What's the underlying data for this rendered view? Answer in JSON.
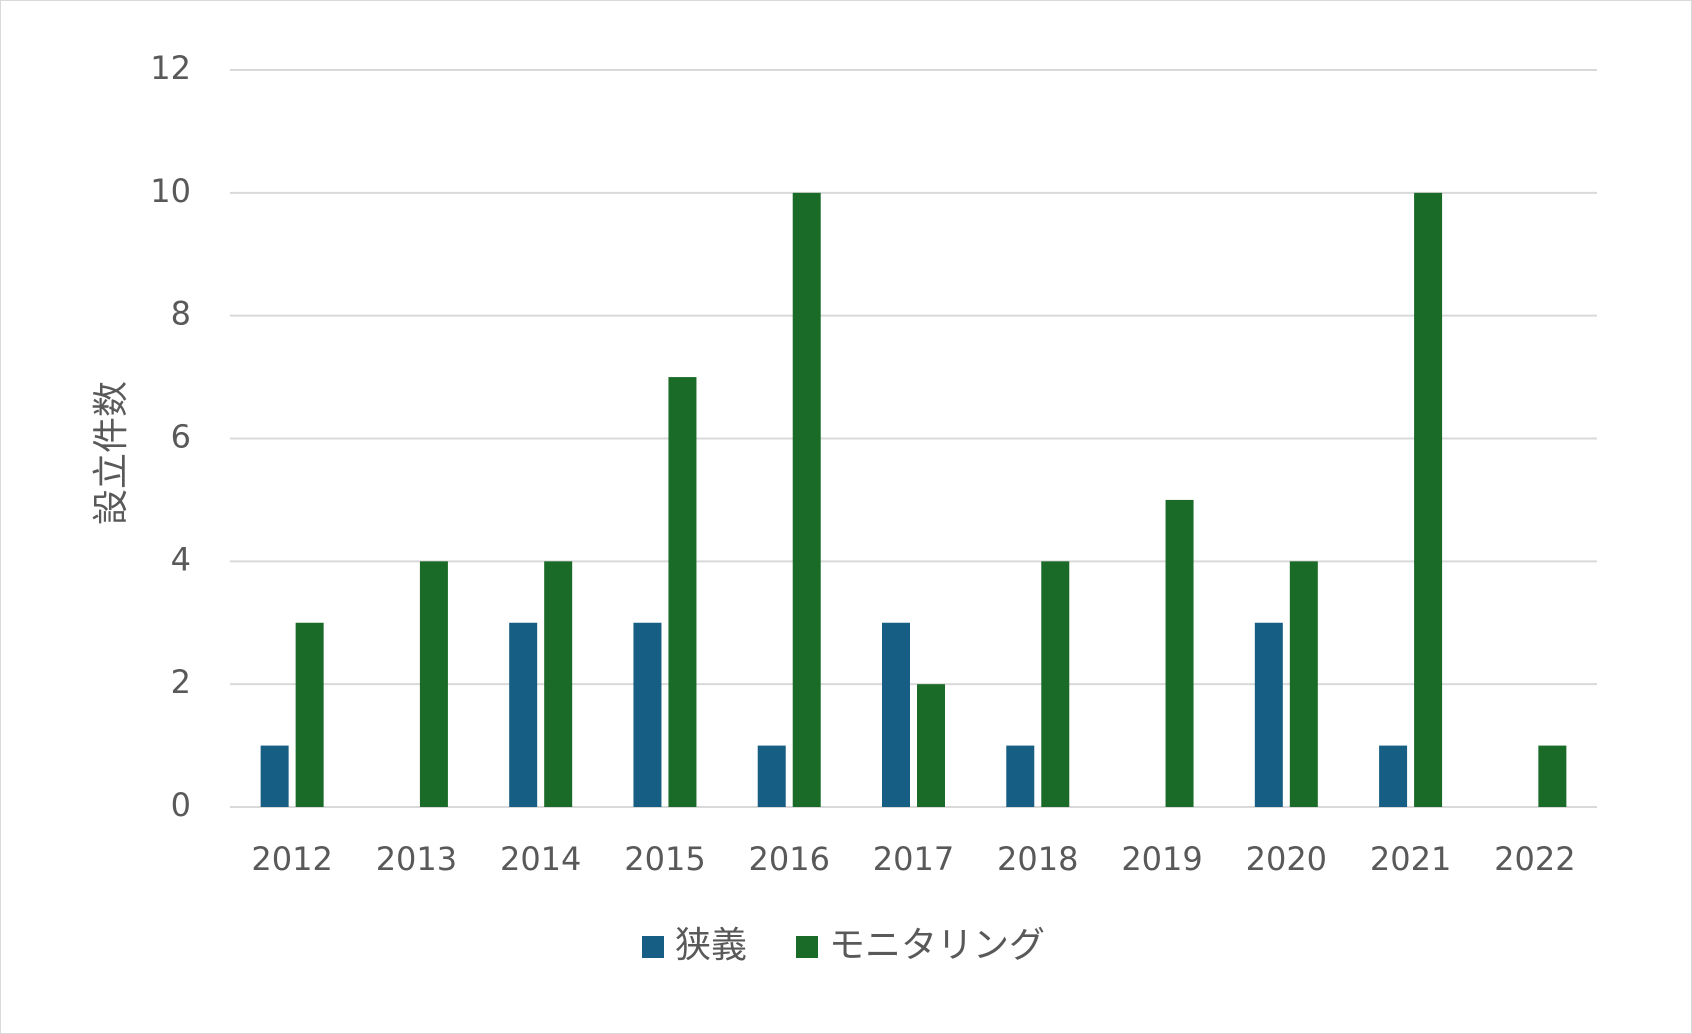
{
  "chart_data": {
    "type": "bar",
    "title": "",
    "xlabel": "",
    "ylabel": "設立件数",
    "ylim": [
      0,
      12
    ],
    "yticks": [
      0,
      2,
      4,
      6,
      8,
      10,
      12
    ],
    "grid": true,
    "legend": "bottom",
    "categories": [
      "2012",
      "2013",
      "2014",
      "2015",
      "2016",
      "2017",
      "2018",
      "2019",
      "2020",
      "2021",
      "2022"
    ],
    "series": [
      {
        "name": "狭義",
        "color": "#175e84",
        "values": [
          1,
          0,
          3,
          3,
          1,
          3,
          1,
          0,
          3,
          1,
          0
        ]
      },
      {
        "name": "モニタリング",
        "color": "#1a6b28",
        "values": [
          3,
          4,
          4,
          7,
          10,
          2,
          4,
          5,
          4,
          10,
          1
        ]
      }
    ]
  }
}
